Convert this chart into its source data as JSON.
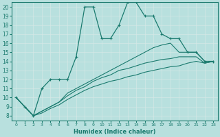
{
  "xlabel": "Humidex (Indice chaleur)",
  "x_values": [
    0,
    1,
    2,
    3,
    4,
    5,
    6,
    7,
    8,
    9,
    10,
    11,
    12,
    13,
    14,
    15,
    16,
    17,
    18,
    19,
    20,
    21,
    22,
    23
  ],
  "line_jagged": [
    10,
    9,
    8,
    11,
    12,
    12,
    12,
    14.5,
    20,
    20,
    16.5,
    16.5,
    18,
    20.5,
    20.5,
    19,
    19,
    17,
    16.5,
    16.5,
    15,
    15,
    14,
    14
  ],
  "line_upper": [
    10,
    9,
    8,
    8.5,
    9,
    9.5,
    10.5,
    11,
    11.5,
    12,
    12.5,
    13,
    13.5,
    14,
    14.5,
    15,
    15.5,
    15.8,
    16,
    15,
    15,
    15,
    14,
    14
  ],
  "line_mid": [
    10,
    9,
    8,
    8.5,
    9,
    9.5,
    10.2,
    10.8,
    11.2,
    11.8,
    12.2,
    12.5,
    13,
    13.2,
    13.5,
    13.8,
    14,
    14.2,
    14.3,
    14.5,
    14.5,
    14.5,
    13.8,
    14
  ],
  "line_lower": [
    10,
    9,
    8,
    8.3,
    8.8,
    9.2,
    9.8,
    10.3,
    10.8,
    11.2,
    11.5,
    11.8,
    12,
    12.3,
    12.5,
    12.8,
    13,
    13.2,
    13.4,
    13.5,
    13.8,
    14,
    13.8,
    14
  ],
  "line_color": "#1a7a6e",
  "bg_color": "#b8e0de",
  "grid_color": "#c8d8d8",
  "xlim": [
    -0.5,
    23.5
  ],
  "ylim": [
    7.5,
    20.5
  ],
  "yticks": [
    8,
    9,
    10,
    11,
    12,
    13,
    14,
    15,
    16,
    17,
    18,
    19,
    20
  ],
  "xticks": [
    0,
    1,
    2,
    3,
    4,
    5,
    6,
    7,
    8,
    9,
    10,
    11,
    12,
    13,
    14,
    15,
    16,
    17,
    18,
    19,
    20,
    21,
    22,
    23
  ]
}
